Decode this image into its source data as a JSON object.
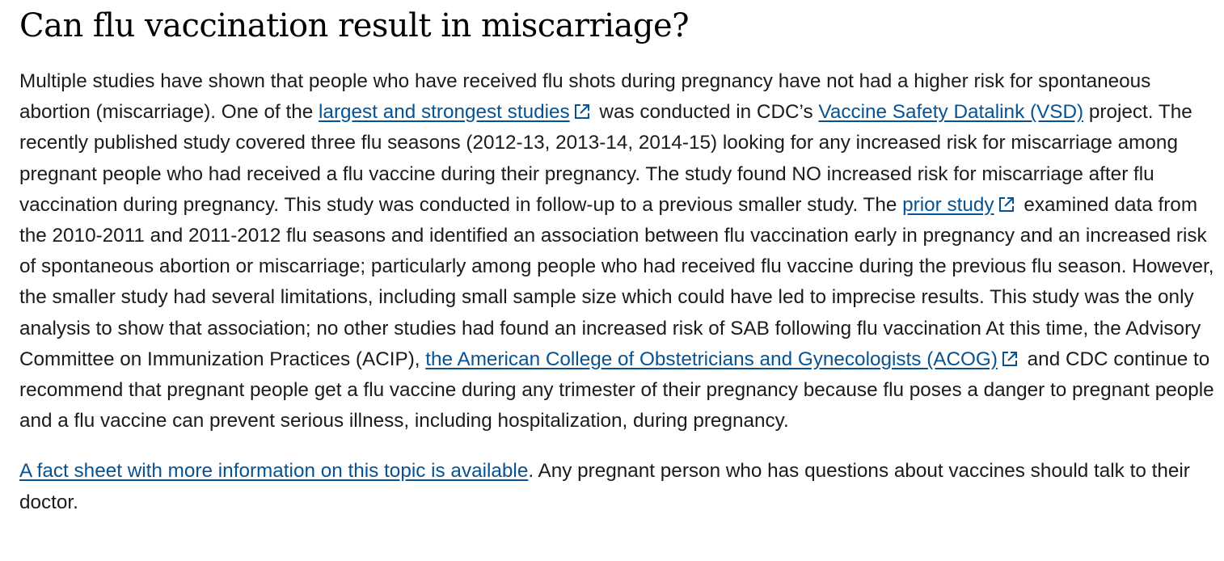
{
  "heading": "Can flu vaccination result in miscarriage?",
  "paragraph1": {
    "t1": "Multiple studies have shown that people who have received flu shots during pregnancy have not had a higher risk for spontaneous abortion (miscarriage). One of the ",
    "link1": "largest and strongest studies",
    "t2": " was conducted in CDC’s ",
    "link2": "Vaccine Safety Datalink (VSD)",
    "t3": " project. The recently published study covered three flu seasons (2012-13, 2013-14, 2014-15) looking for any increased risk for miscarriage among pregnant people who had received a flu vaccine during their pregnancy. The study found NO increased risk for miscarriage after flu vaccination during pregnancy. This study was conducted in follow-up to a previous smaller study. The ",
    "link3": "prior study",
    "t4": " examined data from the 2010-2011 and 2011-2012 flu seasons and identified an association between flu vaccination early in pregnancy and an increased risk of spontaneous abortion or miscarriage; particularly among people who had received flu vaccine during the previous flu season. However, the smaller study had several limitations, including small sample size which could have led to imprecise results. This study was the only analysis to show that association; no other studies had found an increased risk of SAB following flu vaccination At this time, the Advisory Committee on Immunization Practices (ACIP), ",
    "link4": "the American College of Obstetricians and Gynecologists (ACOG)",
    "t5": " and CDC continue to recommend that pregnant people get a flu vaccine during any trimester of their pregnancy because flu poses a danger to pregnant people and a flu vaccine can prevent serious illness, including hospitalization, during pregnancy."
  },
  "paragraph2": {
    "link": "A fact sheet with more information on this topic is available",
    "t1": ". Any pregnant person who has questions about vaccines should talk to their doctor."
  },
  "icons": {
    "external_link": "external-link-icon"
  },
  "colors": {
    "link": "#075290",
    "text": "#1b1b1b"
  }
}
